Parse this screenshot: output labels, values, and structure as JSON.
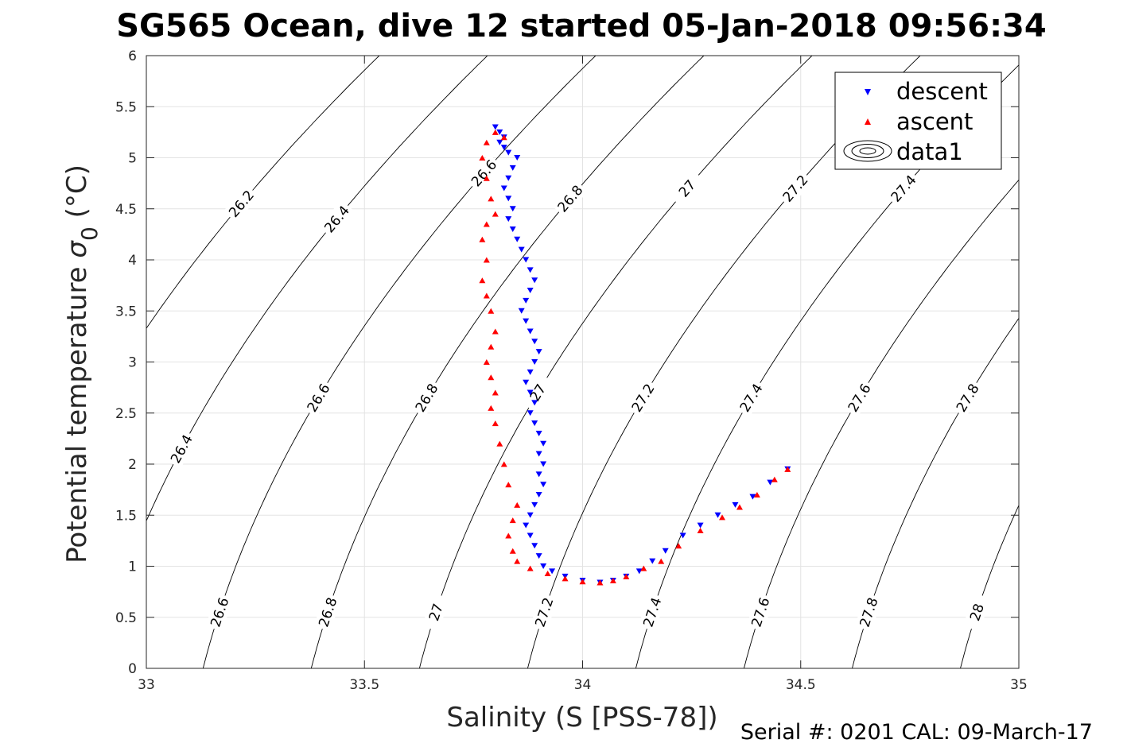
{
  "chart_data": {
    "type": "scatter",
    "title": "SG565 Ocean, dive 12 started 05-Jan-2018 09:56:34",
    "xlabel": "Salinity (S [PSS-78])",
    "ylabel": "Potential temperature σ₀ (°C)",
    "ylabel_main": "Potential temperature ",
    "ylabel_sym": "σ",
    "ylabel_sub": "0",
    "ylabel_unit": " (°C)",
    "footer": "Serial #: 0201  CAL: 09-March-17",
    "xlim": [
      33,
      35
    ],
    "ylim": [
      0,
      6
    ],
    "xticks": [
      33,
      33.5,
      34,
      34.5,
      35
    ],
    "xtick_labels": [
      "33",
      "33.5",
      "34",
      "34.5",
      "35"
    ],
    "yticks": [
      0,
      0.5,
      1,
      1.5,
      2,
      2.5,
      3,
      3.5,
      4,
      4.5,
      5,
      5.5,
      6
    ],
    "ytick_labels": [
      "0",
      "0.5",
      "1",
      "1.5",
      "2",
      "2.5",
      "3",
      "3.5",
      "4",
      "4.5",
      "5",
      "5.5",
      "6"
    ],
    "grid": true,
    "legend_position": "top-right",
    "legend": [
      "descent",
      "ascent",
      "data1"
    ],
    "contours": {
      "levels": [
        26.2,
        26.4,
        26.6,
        26.8,
        27.0,
        27.2,
        27.4,
        27.6,
        27.8,
        28.0
      ],
      "label_text": {
        "26.2": "26.2",
        "26.4": "26.4",
        "26.6": "26.6",
        "26.8": "26.8",
        "27": "27",
        "27.2": "27.2",
        "27.4": "27.4",
        "27.6": "27.6",
        "27.8": "27.8",
        "28": "28"
      },
      "labels": [
        {
          "level": 26.2,
          "t": 4.55
        },
        {
          "level": 26.4,
          "t": 4.4
        },
        {
          "level": 26.6,
          "t": 4.85
        },
        {
          "level": 26.8,
          "t": 4.6
        },
        {
          "level": 27.0,
          "t": 4.7
        },
        {
          "level": 27.2,
          "t": 4.7
        },
        {
          "level": 27.4,
          "t": 4.7
        },
        {
          "level": 27.6,
          "t": 4.7
        },
        {
          "level": 26.4,
          "t": 2.15
        },
        {
          "level": 26.6,
          "t": 2.65
        },
        {
          "level": 26.8,
          "t": 2.65
        },
        {
          "level": 27.0,
          "t": 2.7
        },
        {
          "level": 27.2,
          "t": 2.65
        },
        {
          "level": 27.4,
          "t": 2.65
        },
        {
          "level": 27.6,
          "t": 2.65
        },
        {
          "level": 27.8,
          "t": 2.65
        },
        {
          "level": 26.6,
          "t": 0.55
        },
        {
          "level": 26.8,
          "t": 0.55
        },
        {
          "level": 27.0,
          "t": 0.55
        },
        {
          "level": 27.2,
          "t": 0.55
        },
        {
          "level": 27.4,
          "t": 0.55
        },
        {
          "level": 27.6,
          "t": 0.55
        },
        {
          "level": 27.8,
          "t": 0.55
        },
        {
          "level": 28.0,
          "t": 0.55
        }
      ]
    },
    "series": [
      {
        "name": "descent",
        "marker": "triangle-down",
        "color": "#0000ff",
        "points": [
          [
            33.8,
            5.3
          ],
          [
            33.81,
            5.25
          ],
          [
            33.82,
            5.2
          ],
          [
            33.81,
            5.15
          ],
          [
            33.82,
            5.1
          ],
          [
            33.83,
            5.05
          ],
          [
            33.85,
            5.0
          ],
          [
            33.84,
            4.9
          ],
          [
            33.83,
            4.8
          ],
          [
            33.82,
            4.7
          ],
          [
            33.83,
            4.6
          ],
          [
            33.84,
            4.5
          ],
          [
            33.83,
            4.4
          ],
          [
            33.84,
            4.3
          ],
          [
            33.85,
            4.2
          ],
          [
            33.86,
            4.1
          ],
          [
            33.87,
            4.0
          ],
          [
            33.88,
            3.9
          ],
          [
            33.89,
            3.8
          ],
          [
            33.88,
            3.7
          ],
          [
            33.87,
            3.6
          ],
          [
            33.86,
            3.5
          ],
          [
            33.87,
            3.4
          ],
          [
            33.88,
            3.3
          ],
          [
            33.89,
            3.2
          ],
          [
            33.9,
            3.1
          ],
          [
            33.89,
            3.0
          ],
          [
            33.88,
            2.9
          ],
          [
            33.87,
            2.8
          ],
          [
            33.88,
            2.7
          ],
          [
            33.89,
            2.6
          ],
          [
            33.88,
            2.5
          ],
          [
            33.89,
            2.4
          ],
          [
            33.9,
            2.3
          ],
          [
            33.91,
            2.2
          ],
          [
            33.9,
            2.1
          ],
          [
            33.91,
            2.0
          ],
          [
            33.9,
            1.9
          ],
          [
            33.91,
            1.8
          ],
          [
            33.9,
            1.7
          ],
          [
            33.89,
            1.6
          ],
          [
            33.88,
            1.5
          ],
          [
            33.87,
            1.4
          ],
          [
            33.88,
            1.3
          ],
          [
            33.89,
            1.2
          ],
          [
            33.9,
            1.1
          ],
          [
            33.91,
            1.0
          ],
          [
            33.93,
            0.95
          ],
          [
            33.96,
            0.9
          ],
          [
            34.0,
            0.86
          ],
          [
            34.04,
            0.84
          ],
          [
            34.07,
            0.86
          ],
          [
            34.1,
            0.9
          ],
          [
            34.13,
            0.95
          ],
          [
            34.16,
            1.05
          ],
          [
            34.19,
            1.15
          ],
          [
            34.23,
            1.3
          ],
          [
            34.27,
            1.4
          ],
          [
            34.31,
            1.5
          ],
          [
            34.35,
            1.6
          ],
          [
            34.39,
            1.68
          ],
          [
            34.43,
            1.82
          ],
          [
            34.47,
            1.95
          ]
        ]
      },
      {
        "name": "ascent",
        "marker": "triangle-up",
        "color": "#ff0000",
        "points": [
          [
            34.47,
            1.95
          ],
          [
            34.44,
            1.85
          ],
          [
            34.4,
            1.7
          ],
          [
            34.36,
            1.58
          ],
          [
            34.32,
            1.48
          ],
          [
            34.27,
            1.35
          ],
          [
            34.22,
            1.2
          ],
          [
            34.18,
            1.05
          ],
          [
            34.14,
            0.98
          ],
          [
            34.1,
            0.9
          ],
          [
            34.07,
            0.86
          ],
          [
            34.04,
            0.84
          ],
          [
            34.0,
            0.85
          ],
          [
            33.96,
            0.88
          ],
          [
            33.92,
            0.93
          ],
          [
            33.88,
            0.98
          ],
          [
            33.85,
            1.05
          ],
          [
            33.84,
            1.15
          ],
          [
            33.83,
            1.3
          ],
          [
            33.84,
            1.45
          ],
          [
            33.85,
            1.6
          ],
          [
            33.83,
            1.8
          ],
          [
            33.82,
            2.0
          ],
          [
            33.81,
            2.2
          ],
          [
            33.8,
            2.4
          ],
          [
            33.79,
            2.55
          ],
          [
            33.8,
            2.7
          ],
          [
            33.79,
            2.85
          ],
          [
            33.78,
            3.0
          ],
          [
            33.79,
            3.15
          ],
          [
            33.8,
            3.3
          ],
          [
            33.79,
            3.5
          ],
          [
            33.78,
            3.65
          ],
          [
            33.77,
            3.8
          ],
          [
            33.78,
            4.0
          ],
          [
            33.77,
            4.2
          ],
          [
            33.78,
            4.35
          ],
          [
            33.8,
            4.45
          ],
          [
            33.79,
            4.6
          ],
          [
            33.78,
            4.8
          ],
          [
            33.77,
            5.0
          ],
          [
            33.78,
            5.15
          ],
          [
            33.8,
            5.25
          ],
          [
            33.82,
            5.2
          ]
        ]
      }
    ]
  }
}
